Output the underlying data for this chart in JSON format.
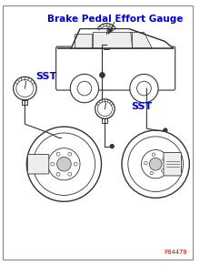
{
  "title": "Brake Pedal Effort Gauge",
  "title_color": "#0000CC",
  "title_fontsize": 7.5,
  "sst_label_1": "SST",
  "sst_label_2": "SST",
  "sst_color": "#0000CC",
  "sst_fontsize": 8,
  "figure_code": "F04470",
  "fig_code_color": "#CC0000",
  "bg_color": "#FFFFFF",
  "border_color": "#AAAAAA",
  "line_color": "#333333",
  "sketch_color": "#555555"
}
